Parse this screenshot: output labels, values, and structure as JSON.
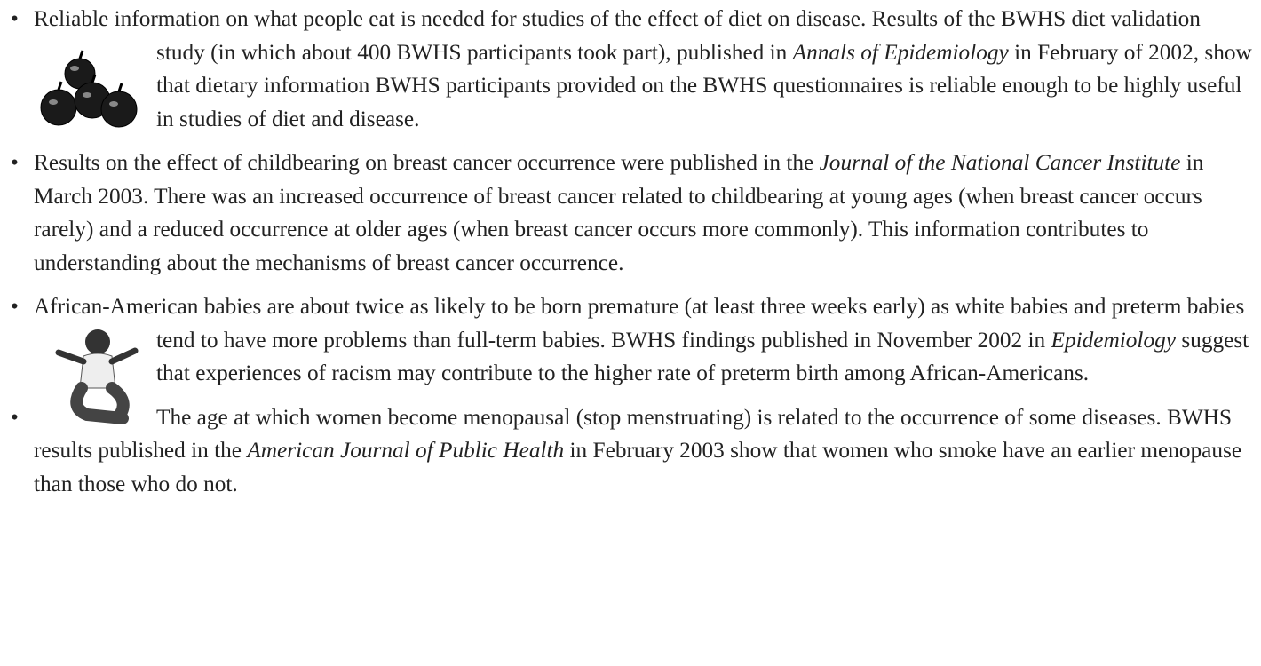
{
  "bullets": [
    {
      "segments": [
        {
          "text": "Reliable information on what people eat is needed for studies of the effect of diet on disease. Results of the BWHS diet validation study (in which about 400 BWHS participants took part), published in "
        },
        {
          "text": "Annals of Epidemiology",
          "italic": true
        },
        {
          "text": " in February of 2002, show that dietary information BWHS participants provided on the BWHS questionnaires is reliable enough to be highly useful in studies of diet and disease."
        }
      ]
    },
    {
      "segments": [
        {
          "text": "Results on the effect of childbearing on breast cancer occurrence were published in the "
        },
        {
          "text": "Journal of the National Cancer Institute",
          "italic": true
        },
        {
          "text": " in March 2003. There was an increased occurrence of breast cancer related to childbearing at young ages (when breast cancer occurs rarely) and a reduced occurrence at older ages (when breast cancer occurs more commonly). This information contributes to understanding about the mechanisms of breast cancer occurrence."
        }
      ]
    },
    {
      "segments": [
        {
          "text": "African-American babies are about twice as likely to be born premature (at least three weeks early) as white babies and preterm babies tend to have more problems than full-term babies. BWHS findings published in November 2002 in "
        },
        {
          "text": "Epidemiology",
          "italic": true
        },
        {
          "text": " suggest that experiences of racism may contribute to the higher rate of preterm birth among African-Americans."
        }
      ]
    },
    {
      "segments": [
        {
          "text": "The age at which women become menopausal (stop menstruating) is related to the occurrence of some diseases. BWHS results published in the "
        },
        {
          "text": "American Journal of Public Health",
          "italic": true
        },
        {
          "text": " in February 2003 show that women who smoke have an earlier menopause than those who do not."
        }
      ]
    }
  ]
}
